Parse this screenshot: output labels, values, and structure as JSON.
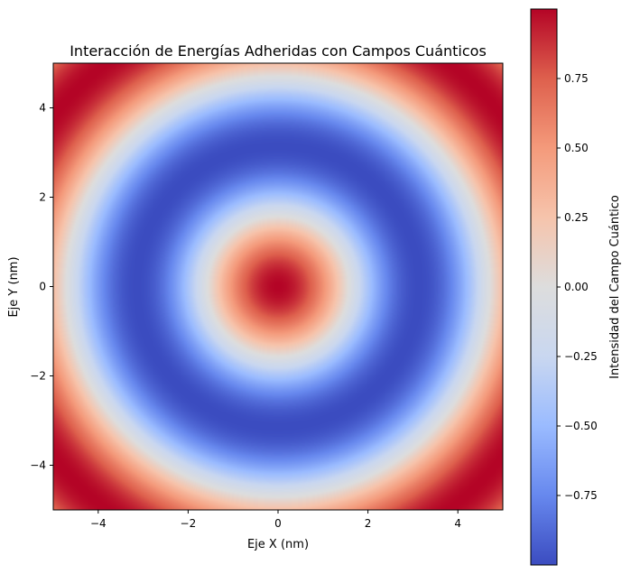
{
  "chart_data": {
    "type": "heatmap",
    "title": "Interacción de Energías Adheridas con Campos Cuánticos",
    "xlabel": "Eje X (nm)",
    "ylabel": "Eje Y (nm)",
    "xlim": [
      -5,
      5
    ],
    "ylim": [
      -5,
      5
    ],
    "x_ticks": [
      -4,
      -2,
      0,
      2,
      4
    ],
    "y_ticks": [
      -4,
      -2,
      0,
      2,
      4
    ],
    "x_tick_labels": [
      "−4",
      "−2",
      "0",
      "2",
      "4"
    ],
    "y_tick_labels": [
      "−4",
      "−2",
      "0",
      "2",
      "4"
    ],
    "field": "cos(sqrt(x^2 + y^2))",
    "colormap": "coolwarm",
    "colormap_stops": [
      "#3b4cc0",
      "#6788ee",
      "#9abbff",
      "#c9d7f0",
      "#dddddd",
      "#f6c4ac",
      "#f49a7b",
      "#de604d",
      "#b40426"
    ],
    "colorbar": {
      "label": "Intensidad del Campo Cuántico",
      "range": [
        -1,
        1
      ],
      "ticks": [
        -0.75,
        -0.5,
        -0.25,
        0.0,
        0.25,
        0.5,
        0.75
      ],
      "tick_labels": [
        "−0.75",
        "−0.50",
        "−0.25",
        "0.00",
        "0.25",
        "0.50",
        "0.75"
      ]
    },
    "grid": false
  }
}
